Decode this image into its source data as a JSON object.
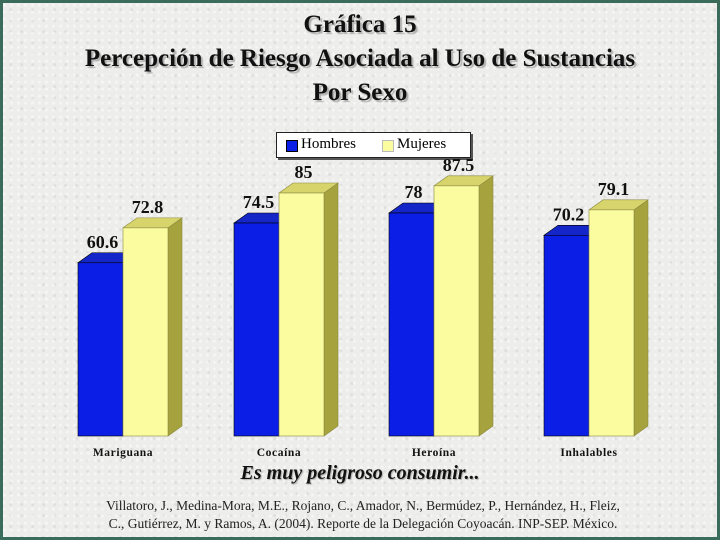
{
  "title": {
    "line1": "Gráfica 15",
    "line2": "Percepción de Riesgo Asociada al Uso de Sustancias",
    "line3": "Por Sexo"
  },
  "subtitle": "Es muy peligroso consumir...",
  "citation": {
    "line1": "Villatoro, J., Medina-Mora, M.E., Rojano, C., Amador, N., Bermúdez, P., Hernández, H., Fleiz,",
    "line2": "C., Gutiérrez, M. y Ramos, A. (2004). Reporte de la Delegación Coyoacán. INP-SEP. México."
  },
  "colors": {
    "hombres": "#0a1ee6",
    "mujeres": "#fbfba0"
  },
  "chart_data": {
    "type": "bar",
    "categories": [
      "Mariguana",
      "Cocaína",
      "Heroína",
      "Inhalables"
    ],
    "series": [
      {
        "name": "Hombres",
        "values": [
          60.6,
          74.5,
          78,
          70.2
        ]
      },
      {
        "name": "Mujeres",
        "values": [
          72.8,
          85,
          87.5,
          79.1
        ]
      }
    ],
    "value_labels": [
      [
        "60.6",
        "74.5",
        "78",
        "70.2"
      ],
      [
        "72.8",
        "85",
        "87.5",
        "79.1"
      ]
    ],
    "ylim": [
      0,
      100
    ],
    "legend": "top-center",
    "grid": false
  }
}
